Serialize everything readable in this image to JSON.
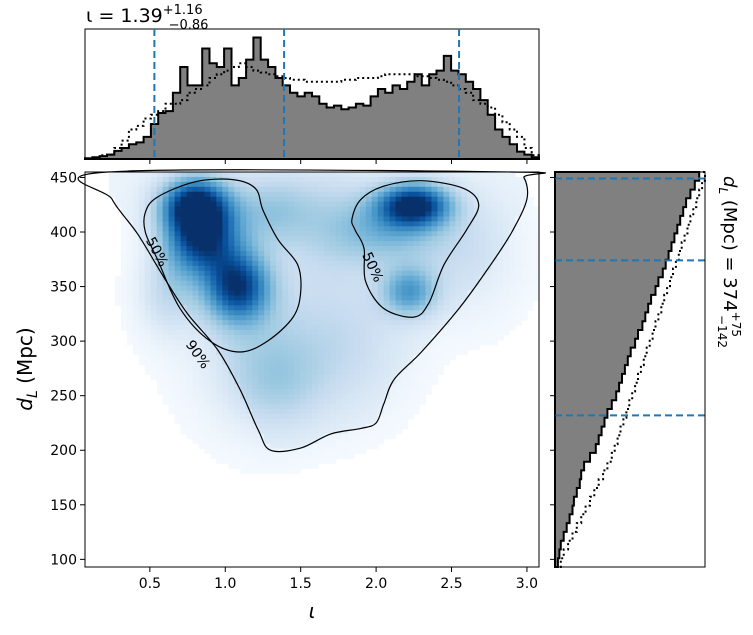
{
  "chart_data": {
    "type": "heatmap",
    "title": {
      "symbol": "ι",
      "equals": " = 1.39",
      "sup": "+1.16",
      "sub": "−0.86"
    },
    "xlabel": "ι",
    "ylabel": {
      "main": "d",
      "sub": "L",
      "rest": " (Mpc)"
    },
    "right_label": {
      "main": "d",
      "sub": "L",
      "mid": " (Mpc) = 374",
      "sup": "+75",
      "subscript": "−142"
    },
    "x_ticks": [
      "0.5",
      "1.0",
      "1.5",
      "2.0",
      "2.5",
      "3.0"
    ],
    "y_ticks": [
      "100",
      "150",
      "200",
      "250",
      "300",
      "350",
      "400",
      "450"
    ],
    "xlim": [
      0.07,
      3.08
    ],
    "ylim": [
      93,
      455
    ],
    "x_quantiles": [
      0.53,
      1.39,
      2.55
    ],
    "y_quantiles": [
      232,
      374,
      449
    ],
    "colormap": [
      "#f7fbff",
      "#deebf7",
      "#c6dbef",
      "#9ecae1",
      "#6baed6",
      "#4292c6",
      "#2171b5",
      "#08519c",
      "#08306b"
    ],
    "quantile_color": "#1f77b4",
    "hist_fill": "#808080",
    "density_blobs": [
      {
        "x": 0.8,
        "y": 425,
        "sx": 0.16,
        "sy": 18,
        "w": 1.0
      },
      {
        "x": 0.85,
        "y": 392,
        "sx": 0.17,
        "sy": 22,
        "w": 0.85
      },
      {
        "x": 1.08,
        "y": 350,
        "sx": 0.15,
        "sy": 22,
        "w": 0.85
      },
      {
        "x": 0.62,
        "y": 345,
        "sx": 0.14,
        "sy": 28,
        "w": 0.25
      },
      {
        "x": 1.3,
        "y": 420,
        "sx": 0.2,
        "sy": 24,
        "w": 0.3
      },
      {
        "x": 2.25,
        "y": 425,
        "sx": 0.17,
        "sy": 14,
        "w": 0.95
      },
      {
        "x": 2.1,
        "y": 400,
        "sx": 0.25,
        "sy": 22,
        "w": 0.35
      },
      {
        "x": 2.22,
        "y": 345,
        "sx": 0.13,
        "sy": 16,
        "w": 0.5
      },
      {
        "x": 1.7,
        "y": 410,
        "sx": 0.22,
        "sy": 35,
        "w": 0.2
      },
      {
        "x": 1.35,
        "y": 260,
        "sx": 0.22,
        "sy": 30,
        "w": 0.18
      },
      {
        "x": 1.2,
        "y": 300,
        "sx": 0.3,
        "sy": 50,
        "w": 0.2
      },
      {
        "x": 1.8,
        "y": 300,
        "sx": 0.28,
        "sy": 45,
        "w": 0.18
      },
      {
        "x": 2.6,
        "y": 380,
        "sx": 0.25,
        "sy": 40,
        "w": 0.15
      }
    ],
    "contour_90": [
      [
        0.22,
        455
      ],
      [
        0.25,
        430
      ],
      [
        0.42,
        398
      ],
      [
        0.6,
        357
      ],
      [
        0.75,
        325
      ],
      [
        0.95,
        292
      ],
      [
        1.1,
        255
      ],
      [
        1.22,
        218
      ],
      [
        1.3,
        200
      ],
      [
        1.5,
        202
      ],
      [
        1.7,
        215
      ],
      [
        1.9,
        220
      ],
      [
        2.0,
        225
      ],
      [
        2.05,
        242
      ],
      [
        2.12,
        265
      ],
      [
        2.3,
        290
      ],
      [
        2.55,
        330
      ],
      [
        2.75,
        368
      ],
      [
        2.9,
        400
      ],
      [
        3.0,
        430
      ],
      [
        2.98,
        450
      ],
      [
        2.9,
        455
      ]
    ],
    "contour_90_label": {
      "text": "90%",
      "x": 0.82,
      "y": 288
    },
    "contour_50a": [
      [
        0.47,
        418
      ],
      [
        0.55,
        432
      ],
      [
        0.8,
        446
      ],
      [
        1.05,
        448
      ],
      [
        1.2,
        440
      ],
      [
        1.25,
        420
      ],
      [
        1.35,
        393
      ],
      [
        1.48,
        370
      ],
      [
        1.5,
        345
      ],
      [
        1.45,
        322
      ],
      [
        1.28,
        300
      ],
      [
        1.1,
        290
      ],
      [
        0.9,
        300
      ],
      [
        0.7,
        330
      ],
      [
        0.55,
        375
      ],
      [
        0.47,
        400
      ]
    ],
    "contour_50a_label": {
      "text": "50%",
      "x": 0.55,
      "y": 382
    },
    "contour_50b": [
      [
        1.84,
        412
      ],
      [
        1.9,
        430
      ],
      [
        2.05,
        442
      ],
      [
        2.3,
        447
      ],
      [
        2.58,
        440
      ],
      [
        2.68,
        425
      ],
      [
        2.6,
        402
      ],
      [
        2.45,
        370
      ],
      [
        2.35,
        335
      ],
      [
        2.25,
        322
      ],
      [
        2.05,
        330
      ],
      [
        1.93,
        355
      ],
      [
        1.92,
        385
      ],
      [
        1.86,
        402
      ]
    ],
    "contour_50b_label": {
      "text": "50%",
      "x": 1.98,
      "y": 368
    },
    "x_hist_range": [
      0.07,
      3.08
    ],
    "x_hist_filled": [
      2,
      5,
      8,
      12,
      22,
      30,
      40,
      45,
      60,
      95,
      125,
      130,
      180,
      250,
      200,
      200,
      300,
      260,
      250,
      300,
      200,
      220,
      270,
      330,
      270,
      250,
      220,
      200,
      180,
      170,
      180,
      170,
      150,
      140,
      145,
      135,
      140,
      150,
      145,
      170,
      190,
      180,
      200,
      190,
      210,
      230,
      200,
      230,
      240,
      280,
      240,
      230,
      210,
      190,
      160,
      120,
      80,
      60,
      40,
      20,
      12,
      5
    ],
    "x_hist_dotted": [
      0,
      2,
      10,
      12,
      30,
      50,
      80,
      90,
      110,
      120,
      130,
      150,
      150,
      160,
      180,
      190,
      200,
      220,
      230,
      240,
      250,
      260,
      250,
      240,
      235,
      230,
      225,
      220,
      215,
      215,
      210,
      210,
      210,
      210,
      210,
      215,
      215,
      220,
      220,
      220,
      225,
      230,
      230,
      230,
      230,
      225,
      225,
      220,
      215,
      210,
      200,
      190,
      180,
      160,
      150,
      140,
      120,
      100,
      80,
      60,
      30,
      10
    ],
    "y_hist_range": [
      93,
      455
    ],
    "y_hist_filled": [
      10,
      15,
      20,
      30,
      40,
      50,
      60,
      65,
      75,
      85,
      90,
      100,
      120,
      140,
      150,
      160,
      170,
      180,
      195,
      210,
      220,
      230,
      240,
      250,
      260,
      275,
      285,
      300,
      310,
      320,
      330,
      345,
      355,
      370,
      380,
      390,
      400,
      410,
      420,
      430,
      440,
      450,
      465,
      480,
      495
    ],
    "y_hist_dotted": [
      20,
      30,
      45,
      60,
      75,
      90,
      105,
      120,
      135,
      150,
      165,
      180,
      195,
      205,
      215,
      225,
      235,
      245,
      255,
      265,
      275,
      285,
      295,
      305,
      315,
      325,
      335,
      345,
      355,
      365,
      375,
      385,
      395,
      405,
      415,
      425,
      435,
      445,
      455,
      465,
      475,
      485,
      495,
      505,
      515
    ]
  }
}
